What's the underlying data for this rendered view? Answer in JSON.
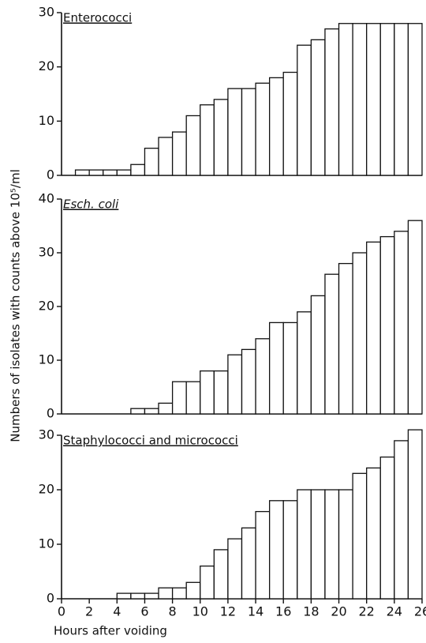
{
  "chart_data": [
    {
      "type": "histogram",
      "title": "Enterococci",
      "italic": false,
      "bins": [
        0,
        1,
        2,
        3,
        4,
        5,
        6,
        7,
        8,
        9,
        10,
        11,
        12,
        13,
        14,
        15,
        16,
        17,
        18,
        19,
        20,
        21,
        22,
        23,
        24,
        25,
        26
      ],
      "values": [
        0,
        1,
        1,
        1,
        1,
        2,
        5,
        7,
        8,
        11,
        13,
        14,
        16,
        16,
        17,
        18,
        19,
        24,
        25,
        27,
        28,
        28,
        28,
        28,
        28,
        28
      ],
      "xlim": [
        0,
        26
      ],
      "ylim": [
        0,
        30
      ],
      "yticks": [
        0,
        10,
        20,
        30
      ]
    },
    {
      "type": "histogram",
      "title": "Esch. coli",
      "italic": true,
      "ylabel": "Numbers of isolates with counts above 10⁵/ml",
      "bins": [
        0,
        1,
        2,
        3,
        4,
        5,
        6,
        7,
        8,
        9,
        10,
        11,
        12,
        13,
        14,
        15,
        16,
        17,
        18,
        19,
        20,
        21,
        22,
        23,
        24,
        25,
        26
      ],
      "values": [
        0,
        0,
        0,
        0,
        0,
        1,
        1,
        2,
        6,
        6,
        8,
        8,
        11,
        12,
        14,
        17,
        17,
        19,
        22,
        26,
        28,
        30,
        32,
        33,
        34,
        36
      ],
      "xlim": [
        0,
        26
      ],
      "ylim": [
        0,
        40
      ],
      "yticks": [
        0,
        10,
        20,
        30,
        40
      ]
    },
    {
      "type": "histogram",
      "title": "Staphylococci and micrococci",
      "italic": false,
      "xlabel": "Hours after voiding",
      "bins": [
        0,
        1,
        2,
        3,
        4,
        5,
        6,
        7,
        8,
        9,
        10,
        11,
        12,
        13,
        14,
        15,
        16,
        17,
        18,
        19,
        20,
        21,
        22,
        23,
        24,
        25,
        26
      ],
      "values": [
        0,
        0,
        0,
        0,
        1,
        1,
        1,
        2,
        2,
        3,
        6,
        9,
        11,
        13,
        16,
        18,
        18,
        20,
        20,
        20,
        20,
        23,
        24,
        26,
        29,
        31
      ],
      "xlim": [
        0,
        26
      ],
      "ylim": [
        0,
        30
      ],
      "yticks": [
        0,
        10,
        20,
        30
      ],
      "xticks": [
        0,
        2,
        4,
        6,
        8,
        10,
        12,
        14,
        16,
        18,
        20,
        22,
        24,
        26
      ]
    }
  ]
}
